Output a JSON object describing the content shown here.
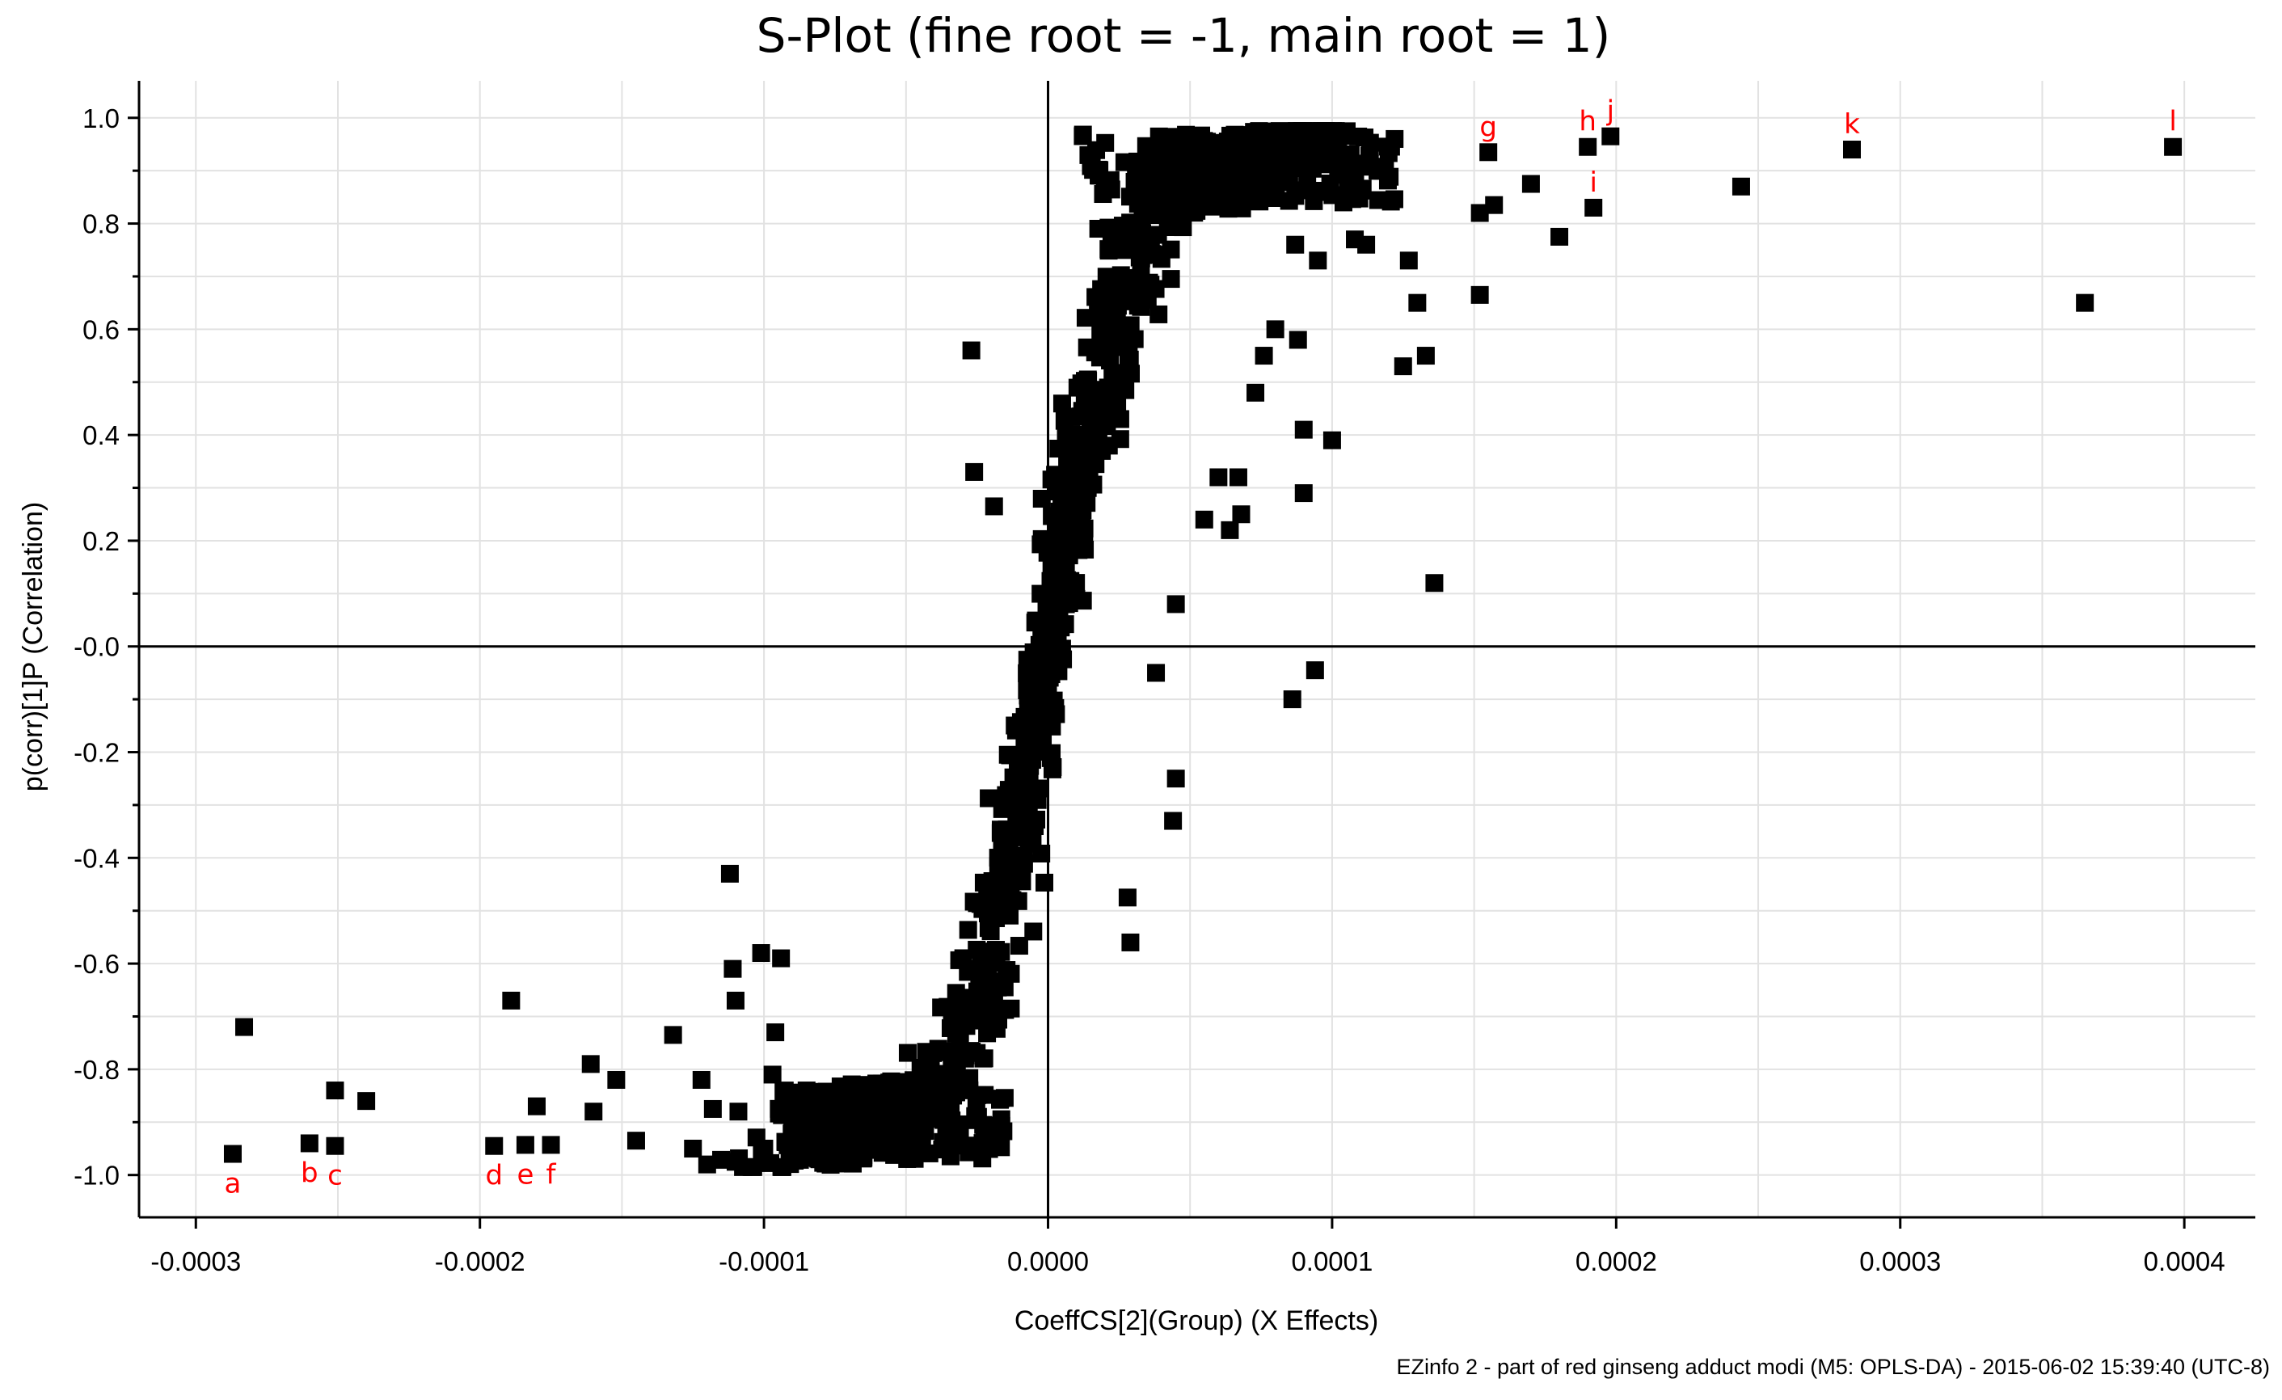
{
  "chart_data": {
    "type": "scatter",
    "title": "S-Plot (fine root = -1, main root = 1)",
    "xlabel": "CoeffCS[2](Group) (X Effects)",
    "ylabel": "p(corr)[1]P (Correlation)",
    "footer": "EZinfo 2 - part of red ginseng adduct modi (M5: OPLS-DA) - 2015-06-02 15:39:40 (UTC-8)",
    "xlim": [
      -0.00032,
      0.000425
    ],
    "ylim": [
      -1.08,
      1.07
    ],
    "grid": true,
    "legend": "none",
    "marker": "square",
    "point_color": "#000000",
    "annotation_color": "#ff0000",
    "x_ticks": [
      {
        "value": -0.0003,
        "label": "-0.0003"
      },
      {
        "value": -0.0002,
        "label": "-0.0002"
      },
      {
        "value": -0.0001,
        "label": "-0.0001"
      },
      {
        "value": 0.0,
        "label": "0.0000"
      },
      {
        "value": 0.0001,
        "label": "0.0001"
      },
      {
        "value": 0.0002,
        "label": "0.0002"
      },
      {
        "value": 0.0003,
        "label": "0.0003"
      },
      {
        "value": 0.0004,
        "label": "0.0004"
      }
    ],
    "y_ticks": [
      {
        "value": 1.0,
        "label": "1.0"
      },
      {
        "value": 0.8,
        "label": "0.8"
      },
      {
        "value": 0.6,
        "label": "0.6"
      },
      {
        "value": 0.4,
        "label": "0.4"
      },
      {
        "value": 0.2,
        "label": "0.2"
      },
      {
        "value": 0.0,
        "label": "-0.0"
      },
      {
        "value": -0.2,
        "label": "-0.2"
      },
      {
        "value": -0.4,
        "label": "-0.4"
      },
      {
        "value": -0.6,
        "label": "-0.6"
      },
      {
        "value": -0.8,
        "label": "-0.8"
      },
      {
        "value": -1.0,
        "label": "-1.0"
      }
    ],
    "labeled_points": [
      {
        "label": "a",
        "x": -0.000287,
        "y": -0.96
      },
      {
        "label": "b",
        "x": -0.00026,
        "y": -0.94
      },
      {
        "label": "c",
        "x": -0.000251,
        "y": -0.945
      },
      {
        "label": "d",
        "x": -0.000195,
        "y": -0.945
      },
      {
        "label": "e",
        "x": -0.000184,
        "y": -0.943
      },
      {
        "label": "f",
        "x": -0.000175,
        "y": -0.943
      },
      {
        "label": "g",
        "x": 0.000155,
        "y": 0.935
      },
      {
        "label": "h",
        "x": 0.00019,
        "y": 0.945
      },
      {
        "label": "i",
        "x": 0.000192,
        "y": 0.83
      },
      {
        "label": "j",
        "x": 0.000198,
        "y": 0.965
      },
      {
        "label": "k",
        "x": 0.000283,
        "y": 0.94
      },
      {
        "label": "l",
        "x": 0.000396,
        "y": 0.945
      }
    ],
    "outlier_points": [
      {
        "x": -0.000283,
        "y": -0.72
      },
      {
        "x": -0.000251,
        "y": -0.84
      },
      {
        "x": -0.00024,
        "y": -0.86
      },
      {
        "x": -0.000189,
        "y": -0.67
      },
      {
        "x": -0.00018,
        "y": -0.87
      },
      {
        "x": -0.000161,
        "y": -0.79
      },
      {
        "x": -0.00016,
        "y": -0.88
      },
      {
        "x": -0.000152,
        "y": -0.82
      },
      {
        "x": -0.000145,
        "y": -0.935
      },
      {
        "x": -0.000132,
        "y": -0.735
      },
      {
        "x": -0.000125,
        "y": -0.95
      },
      {
        "x": -0.000122,
        "y": -0.82
      },
      {
        "x": -0.00012,
        "y": -0.98
      },
      {
        "x": -0.000118,
        "y": -0.875
      },
      {
        "x": -0.000112,
        "y": -0.43
      },
      {
        "x": -0.000111,
        "y": -0.61
      },
      {
        "x": -0.00011,
        "y": -0.67
      },
      {
        "x": -0.00011,
        "y": -0.975
      },
      {
        "x": -0.000109,
        "y": -0.88
      },
      {
        "x": -0.000101,
        "y": -0.58
      },
      {
        "x": -9.7e-05,
        "y": -0.81
      },
      {
        "x": -9.6e-05,
        "y": -0.73
      },
      {
        "x": -9.4e-05,
        "y": -0.59
      },
      {
        "x": -8.5e-05,
        "y": -0.84
      },
      {
        "x": 0.000125,
        "y": 0.53
      },
      {
        "x": 0.000127,
        "y": 0.73
      },
      {
        "x": 0.00013,
        "y": 0.65
      },
      {
        "x": 0.000133,
        "y": 0.55
      },
      {
        "x": 0.000136,
        "y": 0.12
      },
      {
        "x": 0.000152,
        "y": 0.665
      },
      {
        "x": 0.000152,
        "y": 0.82
      },
      {
        "x": 0.000157,
        "y": 0.835
      },
      {
        "x": 0.00017,
        "y": 0.875
      },
      {
        "x": 0.00018,
        "y": 0.775
      },
      {
        "x": 0.000244,
        "y": 0.87
      },
      {
        "x": 0.000365,
        "y": 0.65
      },
      {
        "x": -2.7e-05,
        "y": 0.56
      },
      {
        "x": -2.6e-05,
        "y": 0.33
      },
      {
        "x": -1.9e-05,
        "y": 0.265
      },
      {
        "x": 8.6e-05,
        "y": -0.1
      },
      {
        "x": 9.4e-05,
        "y": -0.045
      },
      {
        "x": 0.0001,
        "y": 0.39
      },
      {
        "x": 9e-05,
        "y": 0.29
      },
      {
        "x": 9e-05,
        "y": 0.41
      },
      {
        "x": 9.5e-05,
        "y": 0.73
      },
      {
        "x": 8.8e-05,
        "y": 0.58
      },
      {
        "x": 8.7e-05,
        "y": 0.76
      },
      {
        "x": 0.000104,
        "y": 0.84
      },
      {
        "x": 0.000108,
        "y": 0.77
      },
      {
        "x": 0.000112,
        "y": 0.76
      },
      {
        "x": 0.000118,
        "y": 0.9
      },
      {
        "x": 0.000122,
        "y": 0.96
      },
      {
        "x": 4.5e-05,
        "y": 0.08
      },
      {
        "x": 4.5e-05,
        "y": -0.25
      },
      {
        "x": 4.4e-05,
        "y": -0.33
      },
      {
        "x": 3.8e-05,
        "y": -0.05
      },
      {
        "x": 2.9e-05,
        "y": -0.56
      },
      {
        "x": 2.8e-05,
        "y": -0.475
      },
      {
        "x": 5.5e-05,
        "y": 0.24
      },
      {
        "x": 6.4e-05,
        "y": 0.22
      },
      {
        "x": 6.8e-05,
        "y": 0.25
      },
      {
        "x": 7.3e-05,
        "y": 0.48
      },
      {
        "x": 7.6e-05,
        "y": 0.55
      },
      {
        "x": 8e-05,
        "y": 0.6
      },
      {
        "x": 6e-05,
        "y": 0.32
      },
      {
        "x": 6.7e-05,
        "y": 0.32
      }
    ],
    "core_cluster": {
      "description": "",
      "count": 1100
    }
  }
}
